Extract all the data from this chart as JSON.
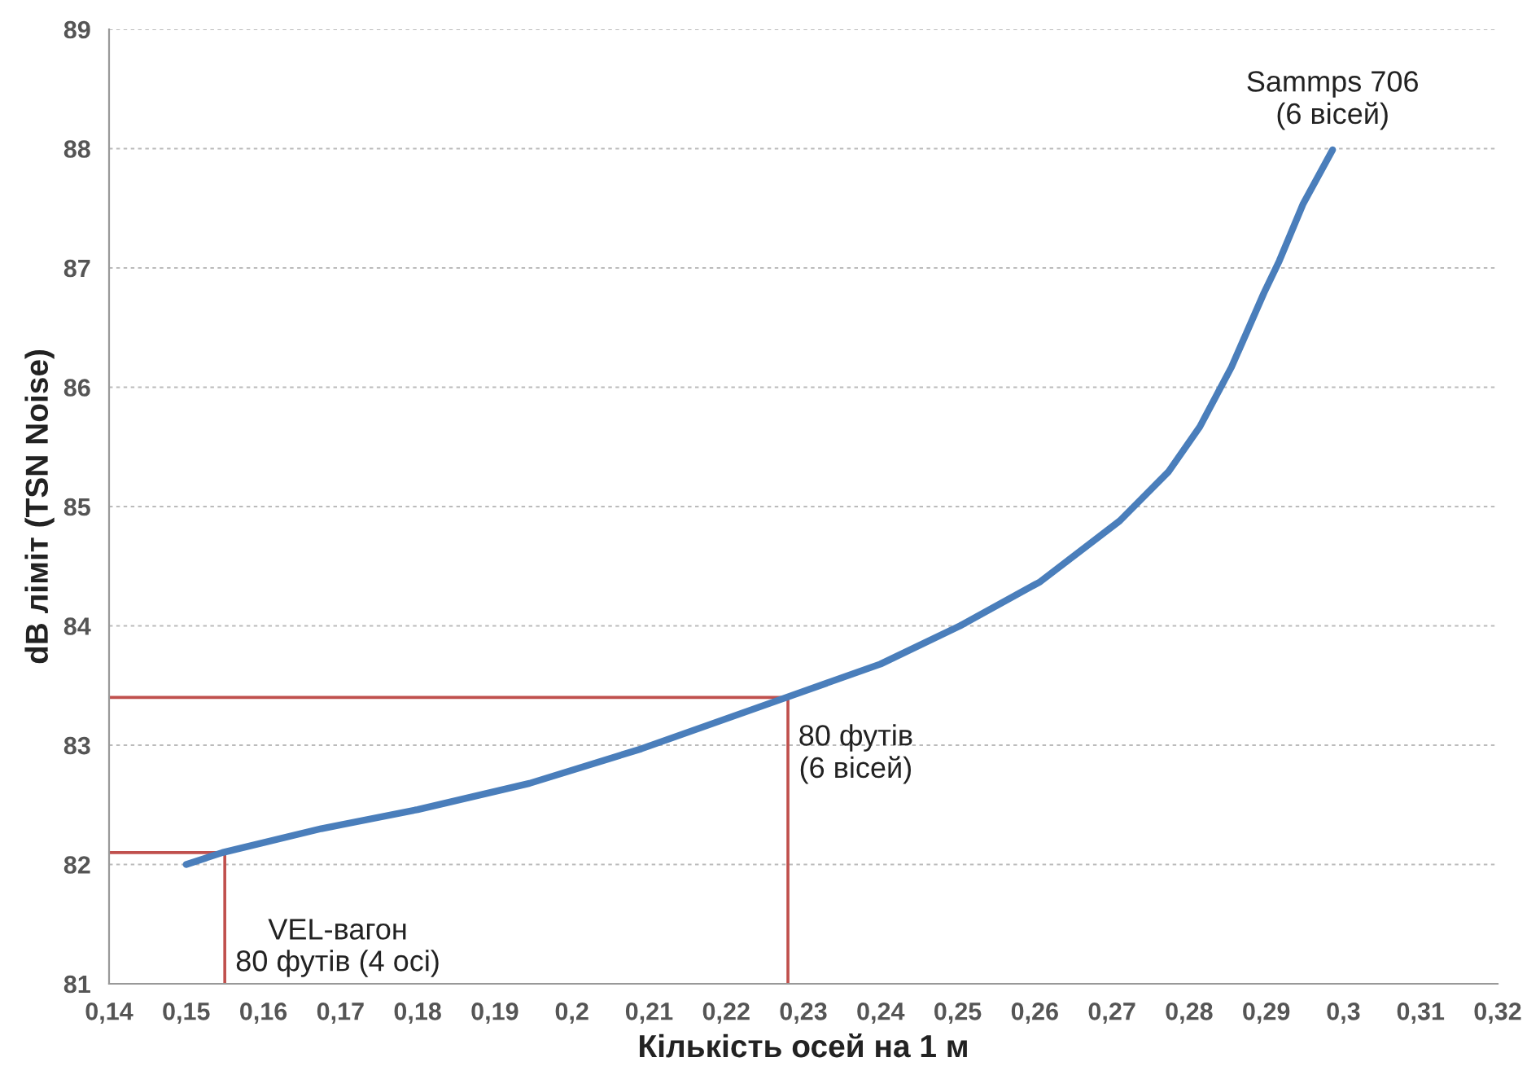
{
  "chart_data": {
    "type": "line",
    "xlabel": "Кількість осей на 1 м",
    "ylabel": "dB ліміт (TSN Noise)",
    "series": [
      {
        "color": "#4a7ebb",
        "x": [
          0.15,
          0.1547,
          0.1675,
          0.18,
          0.1945,
          0.209,
          0.2269,
          0.24,
          0.2503,
          0.2607,
          0.271,
          0.2773,
          0.2814,
          0.2855,
          0.2897,
          0.2917,
          0.2948,
          0.2986
        ],
        "values": [
          82.0,
          82.1,
          82.3,
          82.46,
          82.68,
          82.97,
          83.38,
          83.68,
          84.0,
          84.37,
          84.88,
          85.29,
          85.67,
          86.17,
          86.79,
          87.06,
          87.54,
          87.99
        ]
      },
      {
        "color": "#c0504d",
        "x": [
          0.14,
          0.228,
          0.228
        ],
        "values": [
          83.4,
          83.4,
          81
        ]
      },
      {
        "color": "#c0504d",
        "x": [
          0.14,
          0.155,
          0.155
        ],
        "values": [
          82.1,
          82.1,
          81
        ]
      }
    ],
    "xlim": [
      0.14,
      0.32
    ],
    "ylim": [
      81,
      89
    ],
    "xticks": [
      {
        "value": 0.14,
        "label": "0,14"
      },
      {
        "value": 0.15,
        "label": "0,15"
      },
      {
        "value": 0.16,
        "label": "0,16"
      },
      {
        "value": 0.17,
        "label": "0,17"
      },
      {
        "value": 0.18,
        "label": "0,18"
      },
      {
        "value": 0.19,
        "label": "0,19"
      },
      {
        "value": 0.2,
        "label": "0,2"
      },
      {
        "value": 0.21,
        "label": "0,21"
      },
      {
        "value": 0.22,
        "label": "0,22"
      },
      {
        "value": 0.23,
        "label": "0,23"
      },
      {
        "value": 0.24,
        "label": "0,24"
      },
      {
        "value": 0.25,
        "label": "0,25"
      },
      {
        "value": 0.26,
        "label": "0,26"
      },
      {
        "value": 0.27,
        "label": "0,27"
      },
      {
        "value": 0.28,
        "label": "0,28"
      },
      {
        "value": 0.29,
        "label": "0,29"
      },
      {
        "value": 0.3,
        "label": "0,3"
      },
      {
        "value": 0.31,
        "label": "0,31"
      },
      {
        "value": 0.32,
        "label": "0,32"
      }
    ],
    "yticks": [
      81,
      82,
      83,
      84,
      85,
      86,
      87,
      88,
      89
    ],
    "grid": "y",
    "marker": "none",
    "line_style": "solid",
    "legend": false,
    "annotations": [
      {
        "text": "Sammps 706\n(6 вісей)",
        "x": 0.2986,
        "y": 87.99
      },
      {
        "text": "80 футів\n(6 вісей)",
        "x": 0.228,
        "y": 83.4
      },
      {
        "text": "VEL-вагон\n80 футів (4 осі)",
        "x": 0.155,
        "y": 82.1
      }
    ]
  }
}
